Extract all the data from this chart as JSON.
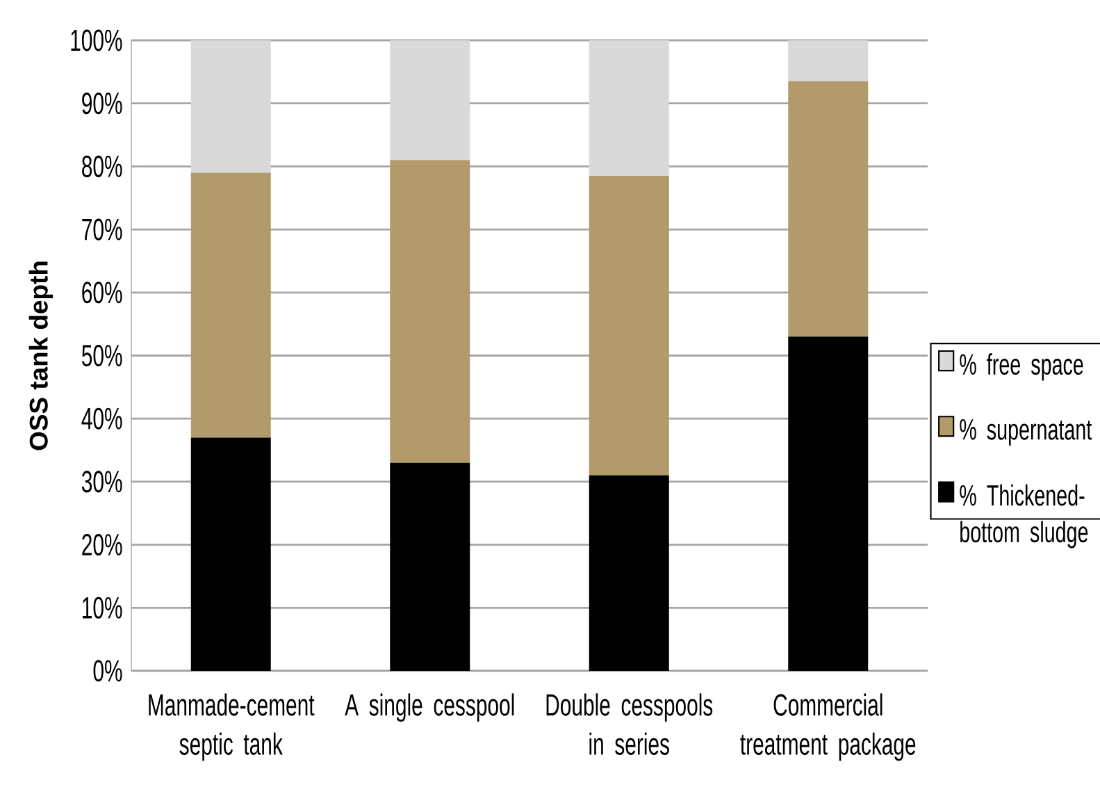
{
  "chart_data": {
    "type": "bar",
    "stacked": true,
    "ylabel": "OSS tank depth",
    "categories": [
      "Manmade-cement septic tank",
      "A single cesspool",
      "Double cesspools in series",
      "Commercial treatment package"
    ],
    "series": [
      {
        "name": "% Thickened-bottom sludge",
        "color": "#000000",
        "values": [
          37,
          33,
          31,
          53
        ]
      },
      {
        "name": "% supernatant",
        "color": "#b39a6b",
        "values": [
          42,
          48,
          47.5,
          40.5
        ]
      },
      {
        "name": "% free space",
        "color": "#d9d9d9",
        "values": [
          21,
          19,
          21.5,
          6.5
        ]
      }
    ],
    "ylim": [
      0,
      100
    ],
    "yticks": [
      {
        "value": 0,
        "label": "0%"
      },
      {
        "value": 10,
        "label": "10%"
      },
      {
        "value": 20,
        "label": "20%"
      },
      {
        "value": 30,
        "label": "30%"
      },
      {
        "value": 40,
        "label": "40%"
      },
      {
        "value": 50,
        "label": "50%"
      },
      {
        "value": 60,
        "label": "60%"
      },
      {
        "value": 70,
        "label": "70%"
      },
      {
        "value": 80,
        "label": "80%"
      },
      {
        "value": 90,
        "label": "90%"
      },
      {
        "value": 100,
        "label": "100%"
      }
    ],
    "grid": "y",
    "legend": "right"
  }
}
